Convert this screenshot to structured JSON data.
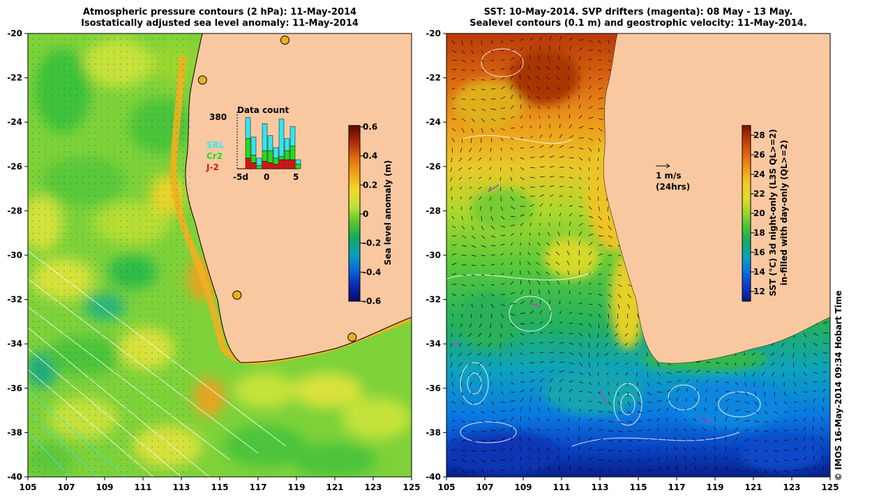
{
  "left_panel": {
    "title_line1": "Atmospheric pressure contours (2 hPa): 11-May-2014",
    "title_line2": "Isostatically adjusted sea level anomaly: 11-May-2014",
    "colorbar": {
      "label": "Sea level anomaly (m)",
      "ticks": [
        "0.6",
        "0.4",
        "0.2",
        "0",
        "-0.2",
        "-0.4",
        "-0.6"
      ],
      "colors": [
        "#5a0a00",
        "#a8280a",
        "#e06a10",
        "#f2a21a",
        "#f4d828",
        "#c4e23a",
        "#5ec82a",
        "#14aa5a",
        "#0aa2b4",
        "#0a6ad8",
        "#0a2ab0",
        "#060a6e"
      ]
    },
    "inset": {
      "title": "Data count",
      "max_label": "380",
      "x_ticks": [
        "-5d",
        "0",
        "5"
      ],
      "legend": [
        {
          "name": "SRL",
          "color": "#33e6ee"
        },
        {
          "name": "Cr2",
          "color": "#22dd22"
        },
        {
          "name": "J-2",
          "color": "#e01010"
        }
      ],
      "bars": [
        {
          "SRL": 0,
          "Cr2": 0,
          "J-2": 0
        },
        {
          "SRL": 140,
          "Cr2": 130,
          "J-2": 70
        },
        {
          "SRL": 120,
          "Cr2": 50,
          "J-2": 40
        },
        {
          "SRL": 50,
          "Cr2": 20,
          "J-2": 0
        },
        {
          "SRL": 180,
          "Cr2": 70,
          "J-2": 50
        },
        {
          "SRL": 100,
          "Cr2": 80,
          "J-2": 40
        },
        {
          "SRL": 70,
          "Cr2": 40,
          "J-2": 30
        },
        {
          "SRL": 250,
          "Cr2": 20,
          "J-2": 60
        },
        {
          "SRL": 80,
          "Cr2": 60,
          "J-2": 60
        },
        {
          "SRL": 130,
          "Cr2": 90,
          "J-2": 60
        },
        {
          "SRL": 30,
          "Cr2": 30,
          "J-2": 0
        }
      ]
    }
  },
  "right_panel": {
    "title_line1": "SST: 10-May-2014. SVP drifters (magenta): 08 May - 13 May.",
    "title_line2": "Sealevel contours (0.1 m) and geostrophic velocity: 11-May-2014.",
    "colorbar": {
      "label_line1": "SST (°C)  3d night-only (L3S QL>=2)",
      "label_line2": "in-filled with day-only (QL>=2)",
      "ticks": [
        "28",
        "26",
        "24",
        "22",
        "20",
        "18",
        "16",
        "14",
        "12"
      ],
      "colors": [
        "#7a1400",
        "#c03a06",
        "#e06a10",
        "#f09a1a",
        "#f2cc24",
        "#dede2a",
        "#9ad62a",
        "#3ec43a",
        "#12a870",
        "#0aa2c0",
        "#0a70e0",
        "#0a3cc4",
        "#061a80"
      ]
    },
    "velocity_legend": {
      "arrow_label": "1 m/s",
      "time_label": "(24hrs)"
    }
  },
  "axes": {
    "lon_ticks": [
      "105",
      "107",
      "109",
      "111",
      "113",
      "115",
      "117",
      "119",
      "121",
      "123",
      "125"
    ],
    "lat_ticks": [
      "-20",
      "-22",
      "-24",
      "-26",
      "-28",
      "-30",
      "-32",
      "-34",
      "-36",
      "-38",
      "-40"
    ],
    "lon_range": [
      105,
      125
    ],
    "lat_range": [
      -40,
      -20
    ]
  },
  "stations_left": [
    {
      "lon": 114.1,
      "lat": -22.1
    },
    {
      "lon": 118.4,
      "lat": -20.3
    },
    {
      "lon": 115.9,
      "lat": -31.8
    },
    {
      "lon": 121.9,
      "lat": -33.7
    }
  ],
  "copyright": "© IMOS 16-May-2014 09:34 Hobart Time",
  "palette": {
    "land": "#fac8a0",
    "ocean_green": "#7ed23a",
    "ocean_yellow": "#c8e23a",
    "sst_orange": "#e27a18",
    "sst_blue": "#1a6ae0"
  }
}
